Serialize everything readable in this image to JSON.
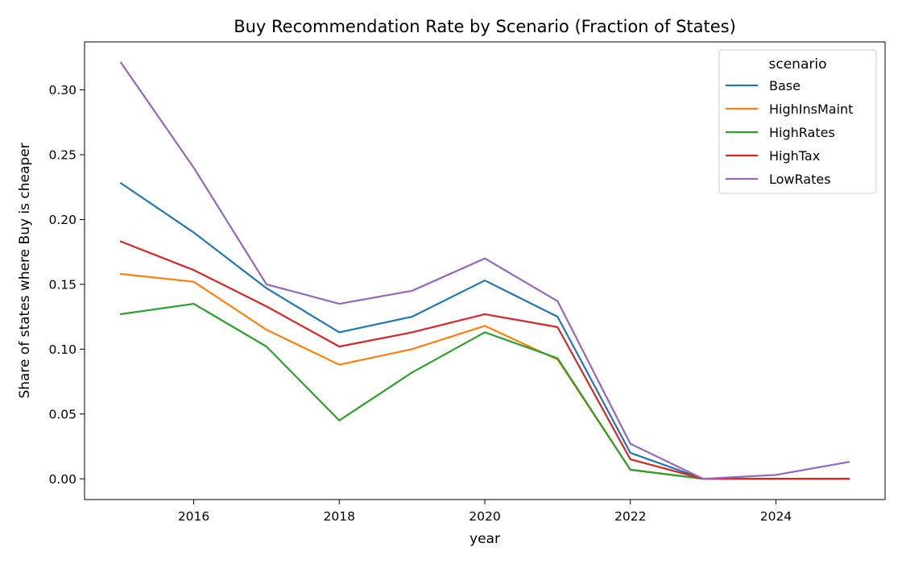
{
  "chart_data": {
    "type": "line",
    "title": "Buy Recommendation Rate by Scenario (Fraction of States)",
    "xlabel": "year",
    "ylabel": "Share of states where Buy is cheaper",
    "x": [
      2015,
      2016,
      2017,
      2018,
      2019,
      2020,
      2021,
      2022,
      2023,
      2024,
      2025
    ],
    "xlim": [
      2014.5,
      2025.5
    ],
    "ylim": [
      -0.016,
      0.337
    ],
    "xticks": [
      "2016",
      "2018",
      "2020",
      "2022",
      "2024"
    ],
    "yticks": [
      "0.00",
      "0.05",
      "0.10",
      "0.15",
      "0.20",
      "0.25",
      "0.30"
    ],
    "grid": false,
    "legend": {
      "title": "scenario",
      "placement": "top-right"
    },
    "series": [
      {
        "name": "Base",
        "color": "#1f77b4",
        "values": [
          0.228,
          0.19,
          0.147,
          0.113,
          0.125,
          0.153,
          0.125,
          0.02,
          0.0,
          0.0,
          0.0
        ]
      },
      {
        "name": "HighInsMaint",
        "color": "#ff7f0e",
        "values": [
          0.158,
          0.152,
          0.115,
          0.088,
          0.1,
          0.118,
          0.092,
          0.007,
          0.0,
          0.0,
          0.0
        ]
      },
      {
        "name": "HighRates",
        "color": "#2ca02c",
        "values": [
          0.127,
          0.135,
          0.102,
          0.045,
          0.082,
          0.113,
          0.093,
          0.007,
          0.0,
          0.0,
          0.0
        ]
      },
      {
        "name": "HighTax",
        "color": "#d62728",
        "values": [
          0.183,
          0.161,
          0.133,
          0.102,
          0.113,
          0.127,
          0.117,
          0.015,
          0.0,
          0.0,
          0.0
        ]
      },
      {
        "name": "LowRates",
        "color": "#9467bd",
        "values": [
          0.321,
          0.24,
          0.15,
          0.135,
          0.145,
          0.17,
          0.137,
          0.027,
          0.0,
          0.003,
          0.013
        ]
      }
    ]
  }
}
